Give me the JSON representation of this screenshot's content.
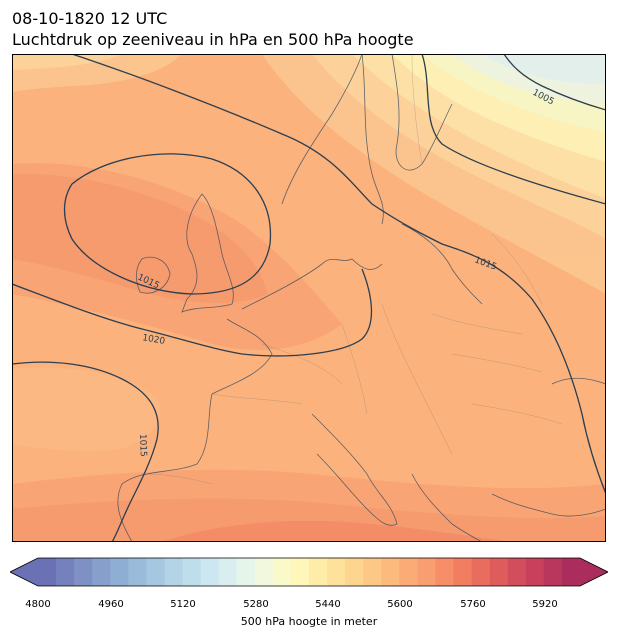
{
  "header": {
    "datetime": "08-10-1820 12 UTC",
    "subtitle": "Luchtdruk op zeeniveau in hPa en 500 hPa hoogte"
  },
  "map": {
    "region": "Europe",
    "fill_variable": "500 hPa geopotential height",
    "contour_variable": "sea level pressure",
    "isobar_labels": [
      "1005",
      "1015",
      "1015",
      "1020",
      "1015"
    ],
    "features": [
      "coastlines",
      "country-borders",
      "isobars",
      "height-shading"
    ]
  },
  "colorbar": {
    "label": "500 hPa hoogte in meter",
    "min": 4800,
    "max": 6000,
    "step": 40,
    "ticks": [
      "4800",
      "4960",
      "5120",
      "5280",
      "5440",
      "5600",
      "5760",
      "5920"
    ],
    "extend": "both",
    "colormap": "RdYlBu_r"
  }
}
